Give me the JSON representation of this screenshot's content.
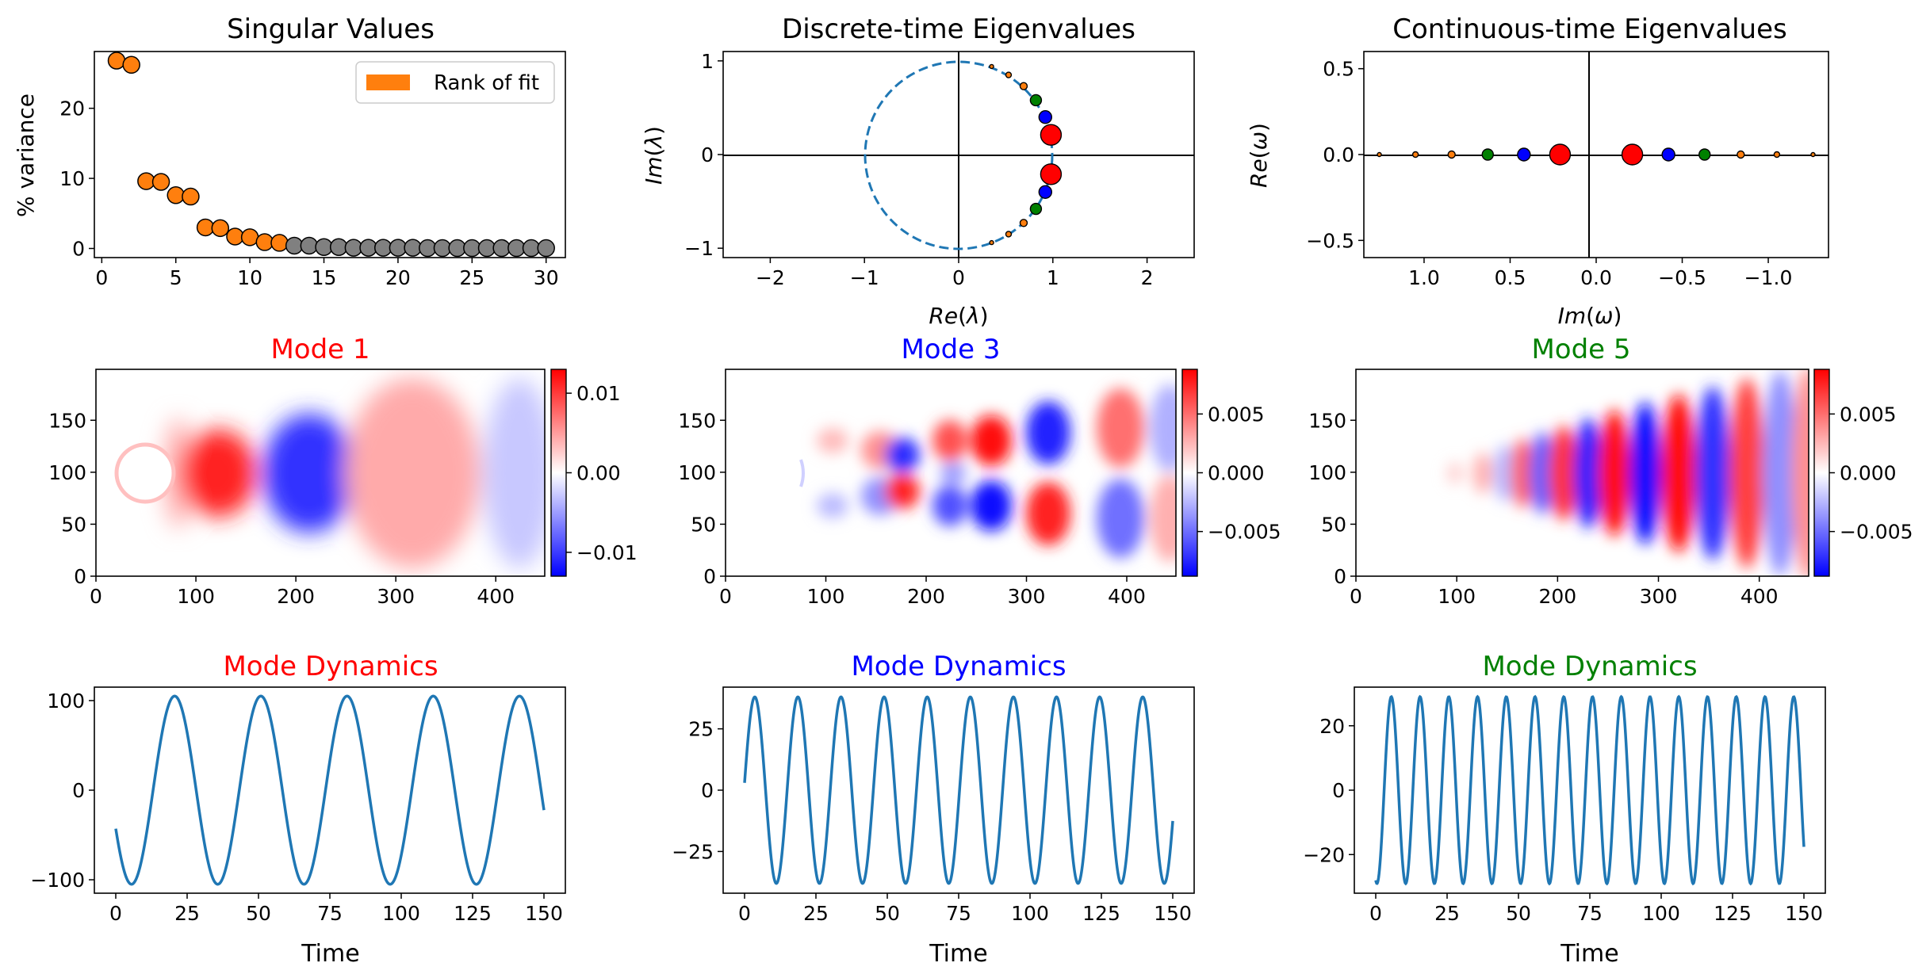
{
  "figure": {
    "panels": {
      "singular_values": {
        "title": "Singular Values",
        "ylabel": "% variance",
        "legend_label": "Rank of fit"
      },
      "discrete_eigs": {
        "title": "Discrete-time Eigenvalues",
        "xlabel": "Re(λ)",
        "ylabel": "Im(λ)"
      },
      "continuous_eigs": {
        "title": "Continuous-time Eigenvalues",
        "xlabel": "Im(ω)",
        "ylabel": "Re(ω)"
      },
      "mode1": {
        "title": "Mode 1",
        "title_color": "#ff0000"
      },
      "mode3": {
        "title": "Mode 3",
        "title_color": "#0000ff"
      },
      "mode5": {
        "title": "Mode 5",
        "title_color": "#008000"
      },
      "dyn1": {
        "title": "Mode Dynamics",
        "title_color": "#ff0000",
        "xlabel": "Time"
      },
      "dyn3": {
        "title": "Mode Dynamics",
        "title_color": "#0000ff",
        "xlabel": "Time"
      },
      "dyn5": {
        "title": "Mode Dynamics",
        "title_color": "#008000",
        "xlabel": "Time"
      }
    },
    "colors": {
      "rank_fill": "#ff7f0e",
      "unused_fill": "#808080",
      "line": "#1f77b4",
      "positive": "#ff0000",
      "negative": "#0000ff"
    }
  },
  "chart_data": [
    {
      "type": "scatter",
      "title": "Singular Values",
      "xlabel": "",
      "ylabel": "% variance",
      "x": [
        1,
        2,
        3,
        4,
        5,
        6,
        7,
        8,
        9,
        10,
        11,
        12,
        13,
        14,
        15,
        16,
        17,
        18,
        19,
        20,
        21,
        22,
        23,
        24,
        25,
        26,
        27,
        28,
        29,
        30
      ],
      "y": [
        26.8,
        26.2,
        9.6,
        9.5,
        7.6,
        7.4,
        3.0,
        2.9,
        1.7,
        1.6,
        0.9,
        0.8,
        0.4,
        0.4,
        0.2,
        0.2,
        0.1,
        0.1,
        0.1,
        0.1,
        0.1,
        0.05,
        0.05,
        0.05,
        0.05,
        0.05,
        0.05,
        0.05,
        0.05,
        0.05
      ],
      "rank": 12,
      "legend": [
        "Rank of fit"
      ],
      "legend_position": "top-right",
      "xlim": [
        -0.5,
        31.3
      ],
      "ylim": [
        -1.3,
        28.1
      ],
      "xticks": [
        0,
        5,
        10,
        15,
        20,
        25,
        30
      ],
      "yticks": [
        0,
        10,
        20
      ]
    },
    {
      "type": "scatter",
      "title": "Discrete-time Eigenvalues",
      "xlabel": "Re(λ)",
      "ylabel": "Im(λ)",
      "xlim": [
        -2.5,
        2.5
      ],
      "ylim": [
        -1.1,
        1.1
      ],
      "xticks": [
        -2,
        -1,
        0,
        1,
        2
      ],
      "yticks": [
        -1,
        0,
        1
      ],
      "unit_circle": true,
      "points": [
        {
          "re": 0.98,
          "im": 0.21,
          "color": "#ff0000",
          "size": 13
        },
        {
          "re": 0.98,
          "im": -0.21,
          "color": "#ff0000",
          "size": 13
        },
        {
          "re": 0.92,
          "im": 0.4,
          "color": "#0000ff",
          "size": 8
        },
        {
          "re": 0.92,
          "im": -0.4,
          "color": "#0000ff",
          "size": 8
        },
        {
          "re": 0.82,
          "im": 0.58,
          "color": "#008000",
          "size": 7
        },
        {
          "re": 0.82,
          "im": -0.58,
          "color": "#008000",
          "size": 7
        },
        {
          "re": 0.69,
          "im": 0.73,
          "color": "#ff7f0e",
          "size": 4.5
        },
        {
          "re": 0.69,
          "im": -0.73,
          "color": "#ff7f0e",
          "size": 4.5
        },
        {
          "re": 0.53,
          "im": 0.85,
          "color": "#ff7f0e",
          "size": 3.5
        },
        {
          "re": 0.53,
          "im": -0.85,
          "color": "#ff7f0e",
          "size": 3.5
        },
        {
          "re": 0.35,
          "im": 0.94,
          "color": "#ff7f0e",
          "size": 2.5
        },
        {
          "re": 0.35,
          "im": -0.94,
          "color": "#ff7f0e",
          "size": 2.5
        }
      ]
    },
    {
      "type": "scatter",
      "title": "Continuous-time Eigenvalues",
      "xlabel": "Im(ω)",
      "ylabel": "Re(ω)",
      "xlim": [
        1.35,
        -1.35
      ],
      "ylim": [
        -0.6,
        0.6
      ],
      "xticks": [
        1.0,
        0.5,
        0.0,
        -0.5,
        -1.0
      ],
      "yticks": [
        -0.5,
        0.0,
        0.5
      ],
      "points": [
        {
          "im": 0.21,
          "re": 0.0,
          "color": "#ff0000",
          "size": 13
        },
        {
          "im": -0.21,
          "re": 0.0,
          "color": "#ff0000",
          "size": 13
        },
        {
          "im": 0.42,
          "re": 0.0,
          "color": "#0000ff",
          "size": 8
        },
        {
          "im": -0.42,
          "re": 0.0,
          "color": "#0000ff",
          "size": 8
        },
        {
          "im": 0.63,
          "re": 0.0,
          "color": "#008000",
          "size": 7
        },
        {
          "im": -0.63,
          "re": 0.0,
          "color": "#008000",
          "size": 7
        },
        {
          "im": 0.84,
          "re": 0.0,
          "color": "#ff7f0e",
          "size": 4.5
        },
        {
          "im": -0.84,
          "re": 0.0,
          "color": "#ff7f0e",
          "size": 4.5
        },
        {
          "im": 1.05,
          "re": 0.0,
          "color": "#ff7f0e",
          "size": 3.5
        },
        {
          "im": -1.05,
          "re": 0.0,
          "color": "#ff7f0e",
          "size": 3.5
        },
        {
          "im": 1.26,
          "re": 0.0,
          "color": "#ff7f0e",
          "size": 2.5
        },
        {
          "im": -1.26,
          "re": 0.0,
          "color": "#ff7f0e",
          "size": 2.5
        }
      ]
    },
    {
      "type": "heatmap",
      "title": "Mode 1",
      "xlim": [
        0,
        449
      ],
      "ylim": [
        0,
        199
      ],
      "xticks": [
        0,
        100,
        200,
        300,
        400
      ],
      "yticks": [
        0,
        50,
        100,
        150
      ],
      "colorbar": {
        "min": -0.013,
        "max": 0.013,
        "ticks": [
          -0.01,
          0.0,
          0.01
        ],
        "tick_labels": [
          "−0.01",
          "0.00",
          "0.01"
        ]
      },
      "cylinder": {
        "x": 50,
        "y": 100,
        "r": 25
      }
    },
    {
      "type": "heatmap",
      "title": "Mode 3",
      "xlim": [
        0,
        449
      ],
      "ylim": [
        0,
        199
      ],
      "xticks": [
        0,
        100,
        200,
        300,
        400
      ],
      "yticks": [
        0,
        50,
        100,
        150
      ],
      "colorbar": {
        "min": -0.0088,
        "max": 0.0088,
        "ticks": [
          -0.005,
          0.0,
          0.005
        ],
        "tick_labels": [
          "−0.005",
          "0.000",
          "0.005"
        ]
      },
      "cylinder": {
        "x": 50,
        "y": 100,
        "r": 25
      }
    },
    {
      "type": "heatmap",
      "title": "Mode 5",
      "xlim": [
        0,
        449
      ],
      "ylim": [
        0,
        199
      ],
      "xticks": [
        0,
        100,
        200,
        300,
        400
      ],
      "yticks": [
        0,
        50,
        100,
        150
      ],
      "colorbar": {
        "min": -0.0088,
        "max": 0.0088,
        "ticks": [
          -0.005,
          0.0,
          0.005
        ],
        "tick_labels": [
          "−0.005",
          "0.000",
          "0.005"
        ]
      }
    },
    {
      "type": "line",
      "title": "Mode Dynamics",
      "xlabel": "Time",
      "xlim": [
        -7.5,
        157.5
      ],
      "ylim": [
        -115,
        115
      ],
      "xticks": [
        0,
        25,
        50,
        75,
        100,
        125,
        150
      ],
      "yticks": [
        -100,
        0,
        100
      ],
      "amplitude": 105,
      "period": 30.2,
      "t_start": 0,
      "t_end": 150,
      "y_start": -43,
      "y_end": -20
    },
    {
      "type": "line",
      "title": "Mode Dynamics",
      "xlabel": "Time",
      "xlim": [
        -7.5,
        157.5
      ],
      "ylim": [
        -42,
        42
      ],
      "xticks": [
        0,
        25,
        50,
        75,
        100,
        125,
        150
      ],
      "yticks": [
        -25,
        0,
        25
      ],
      "amplitude": 38,
      "period": 15.1,
      "t_start": 0,
      "t_end": 150,
      "y_start": 3,
      "y_end": -14
    },
    {
      "type": "line",
      "title": "Mode Dynamics",
      "xlabel": "Time",
      "xlim": [
        -7.5,
        157.5
      ],
      "ylim": [
        -32,
        32
      ],
      "xticks": [
        0,
        25,
        50,
        75,
        100,
        125,
        150
      ],
      "yticks": [
        -20,
        0,
        20
      ],
      "amplitude": 29,
      "period": 10.07,
      "t_start": 0,
      "t_end": 150,
      "y_start": -28,
      "y_end": -17
    }
  ]
}
